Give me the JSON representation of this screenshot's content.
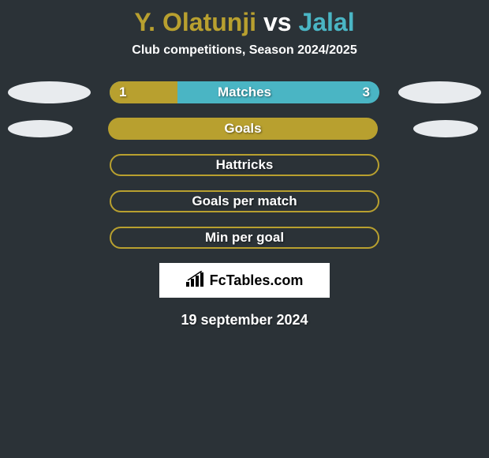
{
  "title": {
    "player1": "Y. Olatunji",
    "vs": " vs ",
    "player2": "Jalal",
    "player1_color": "#b8a02f",
    "vs_color": "#ffffff",
    "player2_color": "#4ab5c4"
  },
  "subtitle": "Club competitions, Season 2024/2025",
  "stats": [
    {
      "label": "Matches",
      "left_value": "1",
      "right_value": "3",
      "left_oval_color": "#e8ebee",
      "right_oval_color": "#e8ebee",
      "left_oval_small": false,
      "bar_bg": "#4ab5c4",
      "fill_color": "#b8a02f",
      "fill_width": 25,
      "bordered": false
    },
    {
      "label": "Goals",
      "left_value": "",
      "right_value": "",
      "left_oval_color": "#e8ebee",
      "right_oval_color": "#e8ebee",
      "left_oval_small": true,
      "bar_bg": "#b8a02f",
      "fill_color": "#b8a02f",
      "fill_width": 0,
      "bordered": false
    },
    {
      "label": "Hattricks",
      "left_value": "",
      "right_value": "",
      "left_oval_color": "transparent",
      "right_oval_color": "transparent",
      "left_oval_small": false,
      "bar_bg": "transparent",
      "fill_color": "transparent",
      "fill_width": 0,
      "bordered": true,
      "border_color": "#b8a02f"
    },
    {
      "label": "Goals per match",
      "left_value": "",
      "right_value": "",
      "left_oval_color": "transparent",
      "right_oval_color": "transparent",
      "left_oval_small": false,
      "bar_bg": "transparent",
      "fill_color": "transparent",
      "fill_width": 0,
      "bordered": true,
      "border_color": "#b8a02f"
    },
    {
      "label": "Min per goal",
      "left_value": "",
      "right_value": "",
      "left_oval_color": "transparent",
      "right_oval_color": "transparent",
      "left_oval_small": false,
      "bar_bg": "transparent",
      "fill_color": "transparent",
      "fill_width": 0,
      "bordered": true,
      "border_color": "#b8a02f"
    }
  ],
  "logo_text": "FcTables.com",
  "date": "19 september 2024",
  "background_color": "#2b3237"
}
